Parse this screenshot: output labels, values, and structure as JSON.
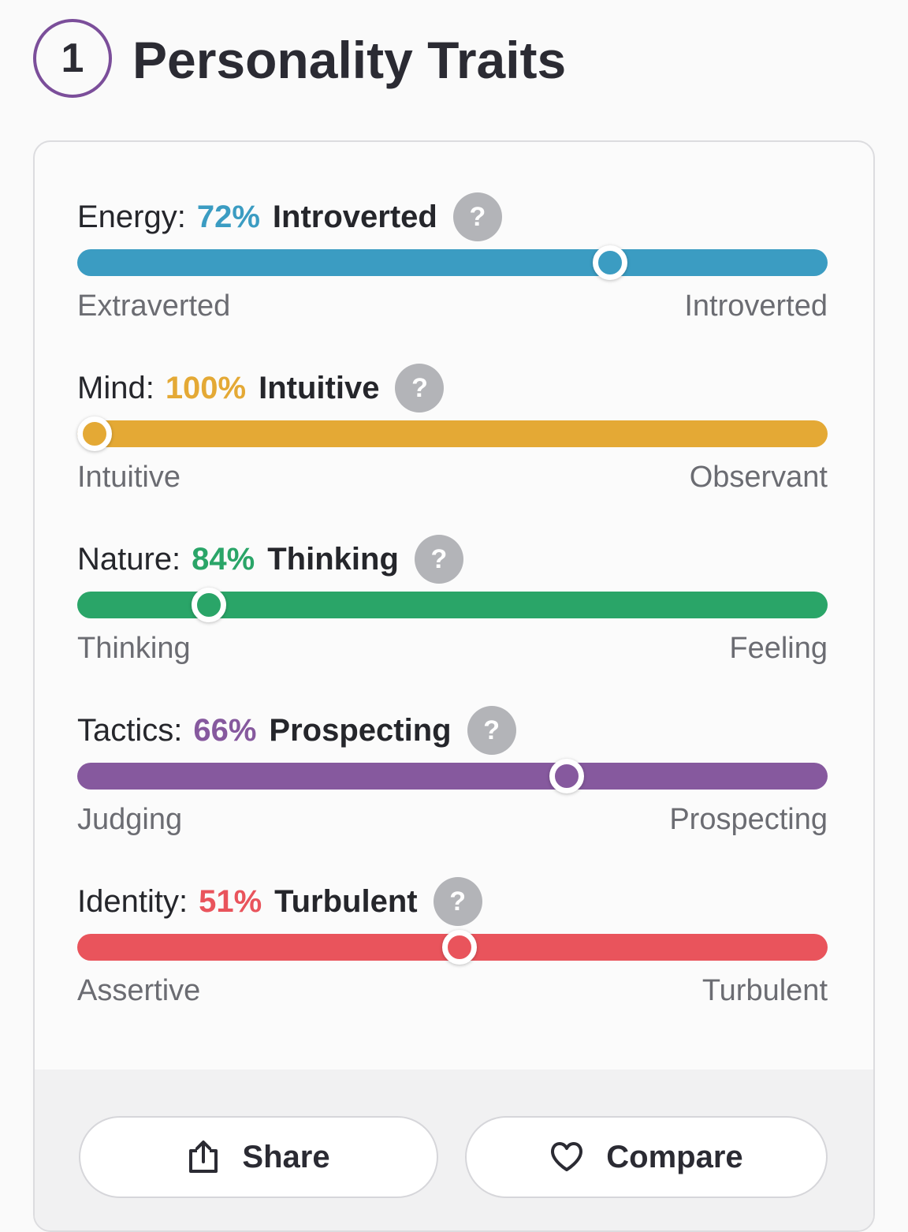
{
  "header": {
    "badge": "1",
    "title": "Personality Traits"
  },
  "traits": [
    {
      "label": "Energy:",
      "percent": "72%",
      "trait": "Introverted",
      "help": "?",
      "left": "Extraverted",
      "right": "Introverted",
      "color": "#3b9cc2",
      "position": 72
    },
    {
      "label": "Mind:",
      "percent": "100%",
      "trait": "Intuitive",
      "help": "?",
      "left": "Intuitive",
      "right": "Observant",
      "color": "#e4a935",
      "position": 0
    },
    {
      "label": "Nature:",
      "percent": "84%",
      "trait": "Thinking",
      "help": "?",
      "left": "Thinking",
      "right": "Feeling",
      "color": "#2aa568",
      "position": 16
    },
    {
      "label": "Tactics:",
      "percent": "66%",
      "trait": "Prospecting",
      "help": "?",
      "left": "Judging",
      "right": "Prospecting",
      "color": "#86599e",
      "position": 66
    },
    {
      "label": "Identity:",
      "percent": "51%",
      "trait": "Turbulent",
      "help": "?",
      "left": "Assertive",
      "right": "Turbulent",
      "color": "#e9545c",
      "position": 51
    }
  ],
  "buttons": [
    {
      "label": "Share"
    },
    {
      "label": "Compare"
    }
  ]
}
